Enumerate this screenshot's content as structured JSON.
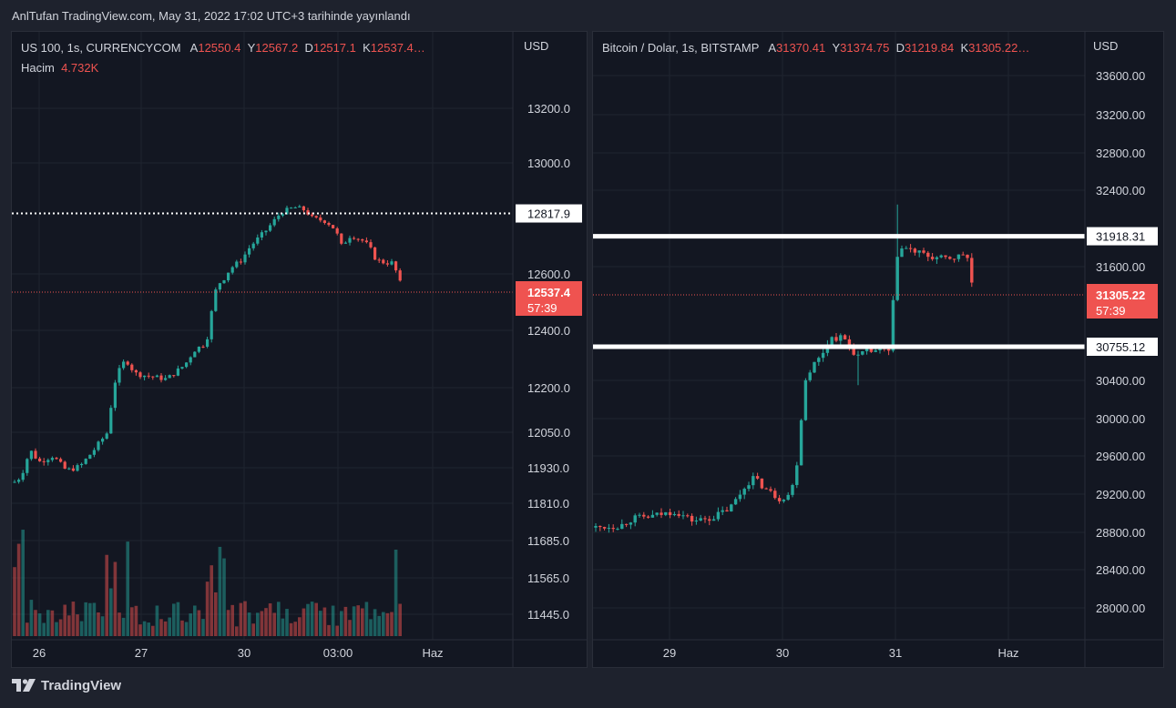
{
  "header": {
    "text": "AnlTufan TradingView.com, May 31, 2022 17:02 UTC+3 tarihinde yayınlandı"
  },
  "footer": {
    "brand": "TradingView",
    "logo_icon": "tradingview-logo-icon"
  },
  "left": {
    "symbol": "US 100, 1s, CURRENCYCOM",
    "ohlc": [
      {
        "k": "A",
        "v": "12550.4"
      },
      {
        "k": "Y",
        "v": "12567.2"
      },
      {
        "k": "D",
        "v": "12517.1"
      },
      {
        "k": "K",
        "v": "12537.4…"
      }
    ],
    "volume_label": "Hacim",
    "volume_value": "4.732K",
    "currency": "USD",
    "price_ticks": [
      "13200.0",
      "13000.0",
      "12600.0",
      "12400.0",
      "12200.0",
      "12050.0",
      "11930.0",
      "11810.0",
      "11685.0",
      "11565.0",
      "11445.0"
    ],
    "time_ticks": [
      "26",
      "27",
      "30",
      "03:00",
      "Haz"
    ],
    "level_label": "12817.9",
    "last_price": "12537.4",
    "countdown": "57:39",
    "up_color": "#26a69a",
    "down_color": "#ef5350"
  },
  "right": {
    "symbol": "Bitcoin / Dolar, 1s, BITSTAMP",
    "ohlc": [
      {
        "k": "A",
        "v": "31370.41"
      },
      {
        "k": "Y",
        "v": "31374.75"
      },
      {
        "k": "D",
        "v": "31219.84"
      },
      {
        "k": "K",
        "v": "31305.22…"
      }
    ],
    "currency": "USD",
    "price_ticks": [
      "33600.00",
      "33200.00",
      "32800.00",
      "32400.00",
      "31600.00",
      "30400.00",
      "30000.00",
      "29600.00",
      "29200.00",
      "28800.00",
      "28400.00",
      "28000.00"
    ],
    "time_ticks": [
      "29",
      "30",
      "31",
      "Haz"
    ],
    "level_labels": [
      "31918.31",
      "30755.12"
    ],
    "last_price": "31305.22",
    "countdown": "57:39",
    "up_color": "#26a69a",
    "down_color": "#ef5350"
  },
  "chart_data": [
    {
      "type": "candlestick",
      "title": "US 100, 1s, CURRENCYCOM",
      "ylabel": "USD",
      "ylim": [
        11445,
        13200
      ],
      "x_ticks": [
        "26",
        "27",
        "30",
        "03:00",
        "Haz"
      ],
      "key_points": [
        {
          "t": "26",
          "close": 11900
        },
        {
          "t": "27",
          "close": 12260
        },
        {
          "t": "30",
          "close": 12780
        },
        {
          "t": "03:00",
          "close": 12800
        },
        {
          "t": "last",
          "close": 12537.4
        }
      ],
      "horizontal_level": 12817.9,
      "series": [
        {
          "name": "Hacim",
          "last": "4.732K"
        }
      ]
    },
    {
      "type": "candlestick",
      "title": "Bitcoin / Dolar, 1s, BITSTAMP",
      "ylabel": "USD",
      "ylim": [
        28000,
        33600
      ],
      "x_ticks": [
        "29",
        "30",
        "31",
        "Haz"
      ],
      "key_points": [
        {
          "t": "29",
          "close": 28900
        },
        {
          "t": "30",
          "close": 29100
        },
        {
          "t": "31",
          "close": 30800
        },
        {
          "t": "31+",
          "close": 31800
        },
        {
          "t": "last",
          "close": 31305.22
        }
      ],
      "horizontal_levels": [
        31918.31,
        30755.12
      ]
    }
  ]
}
